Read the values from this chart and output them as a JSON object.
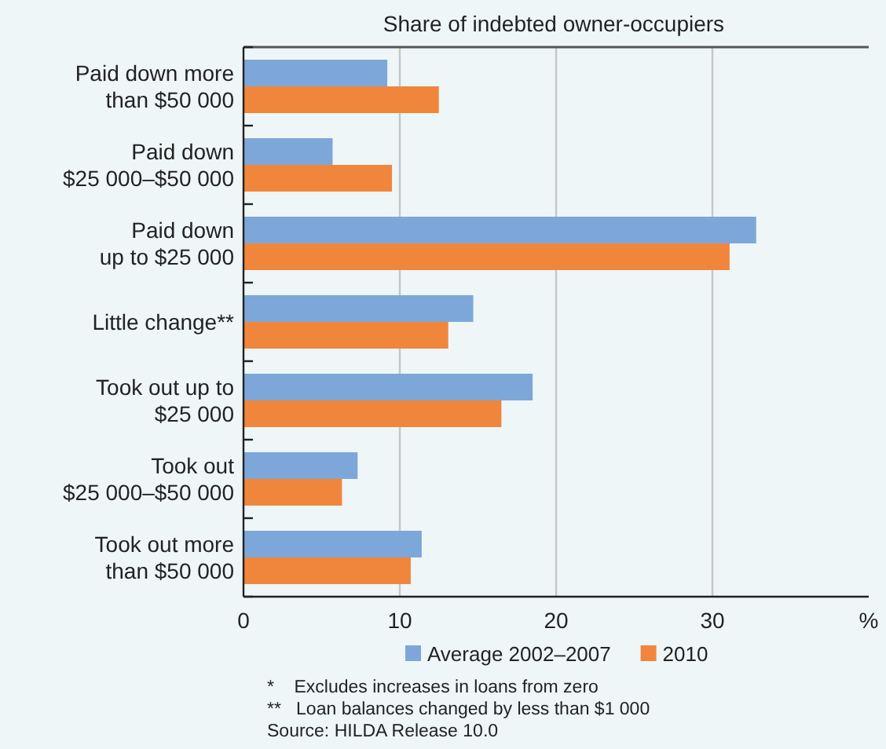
{
  "chart_data": {
    "type": "bar",
    "orientation": "horizontal",
    "subtitle": "Share of indebted owner-occupiers",
    "categories": [
      "Paid down more\nthan $50 000",
      "Paid down\n$25 000–$50 000",
      "Paid down\nup to $25 000",
      "Little change**",
      "Took out up to\n$25 000",
      "Took out\n$25 000–$50 000",
      "Took out more\nthan $50 000"
    ],
    "series": [
      {
        "name": "Average 2002–2007",
        "color": "#7da7d9",
        "values": [
          9.2,
          5.7,
          32.8,
          14.7,
          18.5,
          7.3,
          11.4
        ]
      },
      {
        "name": "2010",
        "color": "#f0863c",
        "values": [
          12.5,
          9.5,
          31.1,
          13.1,
          16.5,
          6.3,
          10.7
        ]
      }
    ],
    "xlim": [
      0,
      40
    ],
    "xticks": [
      0,
      10,
      20,
      30,
      {
        "value": 40,
        "label": "%"
      }
    ],
    "grid": "x",
    "legend": "bottom",
    "annotations": [
      "*    Excludes increases in loans from zero",
      "**   Loan balances changed by less than $1 000",
      "Source: HILDA Release 10.0"
    ]
  }
}
